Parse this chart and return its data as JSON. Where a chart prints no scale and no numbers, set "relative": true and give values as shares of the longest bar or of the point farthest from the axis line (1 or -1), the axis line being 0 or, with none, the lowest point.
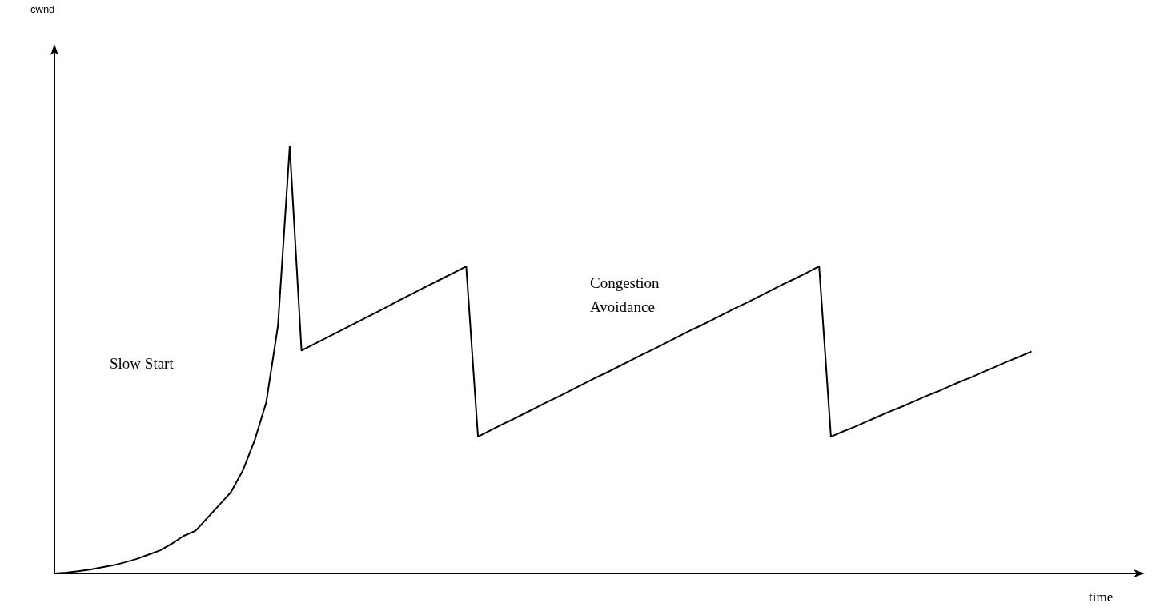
{
  "chart_data": {
    "type": "line",
    "relative": true,
    "xlabel": "time",
    "legend": false,
    "marker": "none",
    "line_style": "solid",
    "annotations": [
      "Slow Start",
      "Congestion\nAvoidance",
      "cwnd"
    ],
    "categories": [
      null,
      null,
      null,
      null,
      null,
      null,
      null,
      null,
      null,
      null,
      null,
      null,
      null,
      null,
      null,
      null,
      null,
      null,
      null,
      null,
      null,
      null,
      null,
      null,
      null,
      null,
      null,
      null,
      null,
      null,
      null,
      null,
      null,
      null,
      null,
      null,
      null,
      null,
      null,
      null,
      null,
      null,
      null,
      null,
      null,
      null,
      null,
      null,
      null,
      null,
      null,
      null,
      null,
      null,
      null,
      null,
      null,
      null,
      null,
      null,
      null,
      null,
      null,
      null,
      null,
      null,
      null,
      null,
      null,
      null,
      null,
      null,
      null,
      null,
      null,
      null,
      null,
      null,
      null,
      null,
      null,
      null,
      null,
      null,
      null,
      null,
      null,
      null,
      null,
      null,
      null,
      null,
      null
    ],
    "series": [
      {
        "color": "#000000",
        "values": [
          0,
          0.002,
          0.005,
          0.009,
          0.014,
          0.019,
          0.026,
          0.034,
          0.044,
          0.054,
          0.07,
          0.088,
          0.1,
          0.13,
          0.16,
          0.19,
          0.24,
          0.31,
          0.4,
          0.58,
          1,
          0.522,
          0.536,
          0.55,
          0.564,
          0.578,
          0.592,
          0.606,
          0.62,
          0.635,
          0.649,
          0.663,
          0.677,
          0.691,
          0.705,
          0.719,
          0.32,
          0.334,
          0.348,
          0.361,
          0.375,
          0.389,
          0.403,
          0.416,
          0.43,
          0.444,
          0.458,
          0.471,
          0.485,
          0.499,
          0.513,
          0.526,
          0.54,
          0.554,
          0.568,
          0.581,
          0.595,
          0.609,
          0.623,
          0.636,
          0.65,
          0.664,
          0.678,
          0.691,
          0.705,
          0.719,
          0.32,
          0.332,
          0.343,
          0.355,
          0.367,
          0.379,
          0.39,
          0.402,
          0.414,
          0.425,
          0.437,
          0.449,
          0.46,
          0.472,
          0.484,
          0.496,
          0.507,
          0.519,
          null,
          null,
          null,
          null,
          null,
          null,
          null,
          null,
          null
        ]
      }
    ]
  }
}
